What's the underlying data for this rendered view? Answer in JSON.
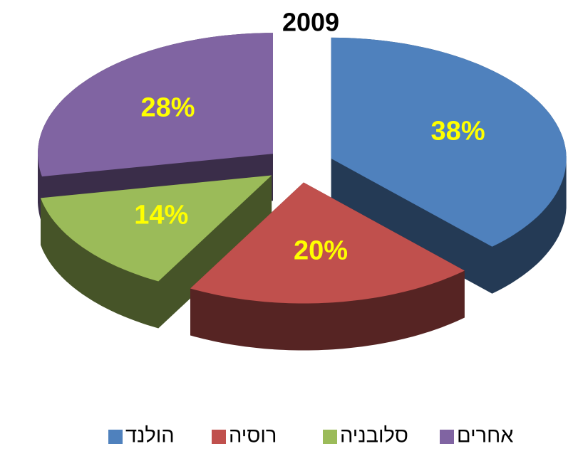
{
  "chart_data": {
    "type": "pie",
    "title": "2009",
    "categories": [
      "הולנד",
      "רוסיה",
      "סלובניה",
      "אחרים"
    ],
    "values": [
      38,
      20,
      14,
      28
    ],
    "value_labels": [
      "38%",
      "20%",
      "14%",
      "28%"
    ],
    "colors": [
      "#4f81bd",
      "#c0504d",
      "#9bbb59",
      "#8064a2"
    ],
    "legend": "bottom"
  }
}
